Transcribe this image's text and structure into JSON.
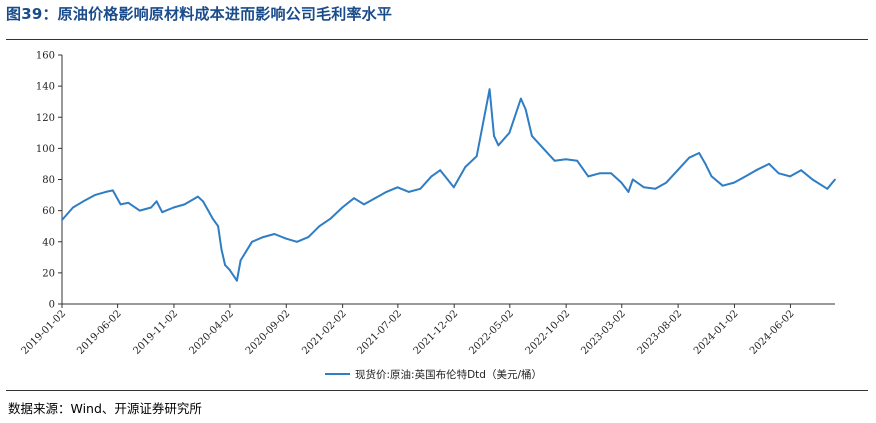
{
  "header": {
    "title": "图39：原油价格影响原材料成本进而影响公司毛利率水平"
  },
  "footer": {
    "source": "数据来源：Wind、开源证券研究所"
  },
  "colors": {
    "series": "#2f7dc5",
    "title": "#1a4c8c"
  },
  "chart_data": {
    "type": "line",
    "title": "",
    "xlabel": "",
    "ylabel": "",
    "ylim": [
      0,
      160
    ],
    "yticks": [
      0,
      20,
      40,
      60,
      80,
      100,
      120,
      140,
      160
    ],
    "xticks": [
      "2019-01-02",
      "2019-06-02",
      "2019-11-02",
      "2020-04-02",
      "2020-09-02",
      "2021-02-02",
      "2021-07-02",
      "2021-12-02",
      "2022-05-02",
      "2022-10-02",
      "2023-03-02",
      "2023-08-02",
      "2024-01-02",
      "2024-06-02"
    ],
    "grid": false,
    "legend_position": "bottom-center",
    "series": [
      {
        "name": "现货价:原油:英国布伦特Dtd（美元/桶）",
        "x": [
          "2019-01-02",
          "2019-02-01",
          "2019-03-01",
          "2019-04-01",
          "2019-05-01",
          "2019-05-20",
          "2019-06-10",
          "2019-07-01",
          "2019-08-01",
          "2019-09-01",
          "2019-09-16",
          "2019-10-01",
          "2019-11-01",
          "2019-12-01",
          "2020-01-06",
          "2020-01-20",
          "2020-02-15",
          "2020-03-01",
          "2020-03-10",
          "2020-03-20",
          "2020-04-01",
          "2020-04-21",
          "2020-05-01",
          "2020-06-01",
          "2020-07-01",
          "2020-08-01",
          "2020-09-01",
          "2020-10-01",
          "2020-11-01",
          "2020-12-01",
          "2021-01-01",
          "2021-02-01",
          "2021-03-05",
          "2021-04-01",
          "2021-05-01",
          "2021-06-01",
          "2021-07-01",
          "2021-08-01",
          "2021-09-01",
          "2021-10-01",
          "2021-10-25",
          "2021-12-01",
          "2022-01-01",
          "2022-02-01",
          "2022-03-08",
          "2022-03-20",
          "2022-04-01",
          "2022-05-01",
          "2022-06-01",
          "2022-06-14",
          "2022-07-01",
          "2022-08-01",
          "2022-09-01",
          "2022-10-01",
          "2022-11-01",
          "2022-12-01",
          "2023-01-01",
          "2023-02-01",
          "2023-03-01",
          "2023-03-20",
          "2023-04-01",
          "2023-05-01",
          "2023-06-01",
          "2023-07-01",
          "2023-08-01",
          "2023-09-01",
          "2023-09-28",
          "2023-10-15",
          "2023-11-01",
          "2023-12-01",
          "2024-01-01",
          "2024-02-01",
          "2024-03-01",
          "2024-04-05",
          "2024-05-01",
          "2024-06-01",
          "2024-07-01",
          "2024-08-01",
          "2024-09-10",
          "2024-10-01"
        ],
        "values": [
          54,
          62,
          66,
          70,
          72,
          73,
          64,
          65,
          60,
          62,
          66,
          59,
          62,
          64,
          69,
          66,
          55,
          50,
          35,
          25,
          22,
          15,
          28,
          40,
          43,
          45,
          42,
          40,
          43,
          50,
          55,
          62,
          68,
          64,
          68,
          72,
          75,
          72,
          74,
          82,
          86,
          75,
          88,
          95,
          138,
          108,
          102,
          110,
          132,
          125,
          108,
          100,
          92,
          93,
          92,
          82,
          84,
          84,
          78,
          72,
          80,
          75,
          74,
          78,
          86,
          94,
          97,
          90,
          82,
          76,
          78,
          82,
          86,
          90,
          84,
          82,
          86,
          80,
          74,
          80
        ]
      }
    ]
  }
}
